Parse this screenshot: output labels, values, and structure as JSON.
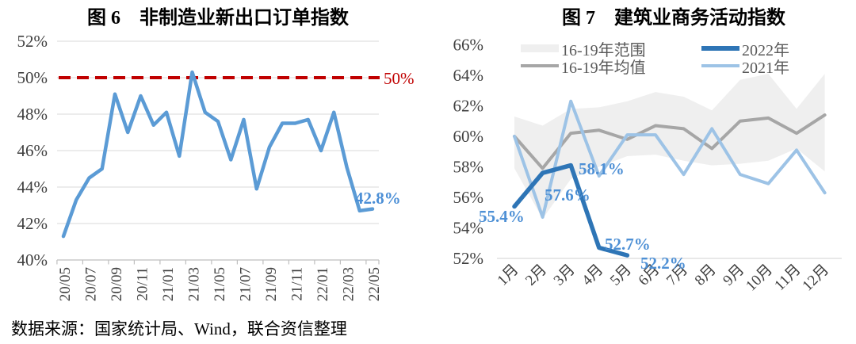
{
  "source_note": "数据来源：国家统计局、Wind，联合资信整理",
  "colors": {
    "axis_text": "#3F3F3F",
    "gridline": "#D9D9D9",
    "axis_line": "#BFBFBF",
    "legend_text": "#595959"
  },
  "chart_data": [
    {
      "type": "line",
      "title": "图 6　非制造业新出口订单指数",
      "x_tick_labels": [
        "20/05",
        "20/07",
        "20/09",
        "20/11",
        "21/01",
        "21/03",
        "21/05",
        "21/07",
        "21/09",
        "21/11",
        "22/01",
        "22/03",
        "22/05"
      ],
      "y_tick_labels": [
        "52%",
        "50%",
        "48%",
        "46%",
        "44%",
        "42%",
        "40%"
      ],
      "y_tick_values": [
        52,
        50,
        48,
        46,
        44,
        42,
        40
      ],
      "ylim": [
        40,
        52
      ],
      "grid": true,
      "series": [
        {
          "color": "#5B9BD5",
          "width": 4.5,
          "values": [
            41.3,
            43.3,
            44.5,
            45.0,
            49.1,
            47.0,
            49.0,
            47.4,
            48.1,
            45.7,
            50.3,
            48.1,
            47.6,
            45.5,
            47.7,
            43.9,
            46.2,
            47.5,
            47.5,
            47.7,
            46.0,
            48.1,
            45.1,
            42.7,
            42.8
          ]
        }
      ],
      "reference_line": {
        "value": 50,
        "label": "50%",
        "color": "#C00000"
      },
      "annotation_color": "#4C8FD6",
      "annotations": [
        {
          "text": "42.8%"
        }
      ]
    },
    {
      "type": "line",
      "title": "图 7　建筑业商务活动指数",
      "x_tick_labels": [
        "1月",
        "2月",
        "3月",
        "4月",
        "5月",
        "6月",
        "7月",
        "8月",
        "9月",
        "10月",
        "11月",
        "12月"
      ],
      "y_tick_labels": [
        "66%",
        "64%",
        "62%",
        "60%",
        "58%",
        "56%",
        "54%",
        "52%"
      ],
      "y_tick_values": [
        66,
        64,
        62,
        60,
        58,
        56,
        54,
        52
      ],
      "ylim": [
        52,
        66
      ],
      "grid": false,
      "band": {
        "name": "16-19年范围",
        "color": "#EFEFEF",
        "upper": [
          61.3,
          60.7,
          61.8,
          61.9,
          62.3,
          62.9,
          62.6,
          61.7,
          63.7,
          64.1,
          61.8,
          64.1
        ],
        "lower": [
          57.9,
          54.6,
          57.2,
          58.0,
          58.7,
          58.8,
          58.4,
          58.1,
          58.2,
          58.4,
          59.2,
          57.7
        ]
      },
      "series": [
        {
          "name": "16-19年均值",
          "color": "#A6A6A6",
          "width": 4,
          "values": [
            60.0,
            57.9,
            60.2,
            60.4,
            59.8,
            60.7,
            60.5,
            59.2,
            61.0,
            61.2,
            60.2,
            61.4
          ]
        },
        {
          "name": "2021年",
          "color": "#9DC3E6",
          "width": 4,
          "values": [
            60.0,
            54.7,
            62.3,
            57.4,
            60.1,
            60.1,
            57.5,
            60.5,
            57.5,
            56.9,
            59.1,
            56.3
          ]
        },
        {
          "name": "2022年",
          "color": "#2E75B6",
          "width": 5.5,
          "values": [
            55.4,
            57.6,
            58.1,
            52.7,
            52.2
          ]
        }
      ],
      "legend": [
        {
          "label": "16-19年范围",
          "type": "band",
          "color": "#EFEFEF"
        },
        {
          "label": "16-19年均值",
          "type": "line",
          "color": "#A6A6A6"
        },
        {
          "label": "2022年",
          "type": "line-thick",
          "color": "#2E75B6"
        },
        {
          "label": "2021年",
          "type": "line",
          "color": "#9DC3E6"
        }
      ],
      "annotation_color": "#4E90D5",
      "annotations": [
        {
          "text": "55.4%"
        },
        {
          "text": "57.6%"
        },
        {
          "text": "58.1%"
        },
        {
          "text": "52.7%"
        },
        {
          "text": "52.2%"
        }
      ]
    }
  ]
}
